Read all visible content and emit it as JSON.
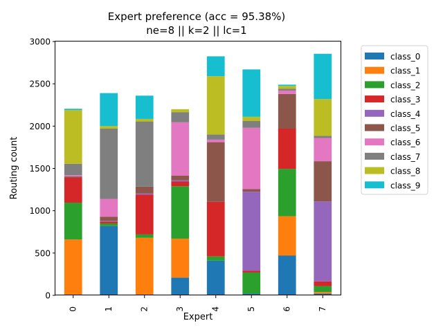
{
  "chart_data": {
    "type": "bar",
    "stacked": true,
    "title": "Expert preference (acc = 95.38%)",
    "subtitle": "ne=8 || k=2 || lc=1",
    "xlabel": "Expert",
    "ylabel": "Routing count",
    "ylim": [
      0,
      3000
    ],
    "yticks": [
      0,
      500,
      1000,
      1500,
      2000,
      2500,
      3000
    ],
    "categories": [
      "0",
      "1",
      "2",
      "3",
      "4",
      "5",
      "6",
      "7"
    ],
    "legend_position": "outside-right",
    "series": [
      {
        "name": "class_0",
        "color": "#1f77b4",
        "values": [
          0,
          820,
          5,
          210,
          410,
          20,
          470,
          20
        ]
      },
      {
        "name": "class_1",
        "color": "#ff7f0e",
        "values": [
          660,
          0,
          675,
          460,
          0,
          0,
          465,
          20
        ]
      },
      {
        "name": "class_2",
        "color": "#2ca02c",
        "values": [
          435,
          30,
          40,
          620,
          50,
          250,
          560,
          70
        ]
      },
      {
        "name": "class_3",
        "color": "#d62728",
        "values": [
          295,
          20,
          470,
          55,
          645,
          20,
          475,
          55
        ]
      },
      {
        "name": "class_4",
        "color": "#9467bd",
        "values": [
          0,
          10,
          15,
          15,
          0,
          935,
          0,
          945
        ]
      },
      {
        "name": "class_5",
        "color": "#8c564b",
        "values": [
          15,
          50,
          80,
          55,
          705,
          30,
          410,
          475
        ]
      },
      {
        "name": "class_6",
        "color": "#e377c2",
        "values": [
          15,
          210,
          0,
          630,
          30,
          725,
          40,
          275
        ]
      },
      {
        "name": "class_7",
        "color": "#7f7f7f",
        "values": [
          135,
          830,
          770,
          120,
          60,
          80,
          20,
          25
        ]
      },
      {
        "name": "class_8",
        "color": "#bcbd22",
        "values": [
          635,
          30,
          30,
          35,
          690,
          50,
          35,
          435
        ]
      },
      {
        "name": "class_9",
        "color": "#17becf",
        "values": [
          15,
          390,
          275,
          0,
          235,
          560,
          15,
          535
        ]
      }
    ]
  }
}
